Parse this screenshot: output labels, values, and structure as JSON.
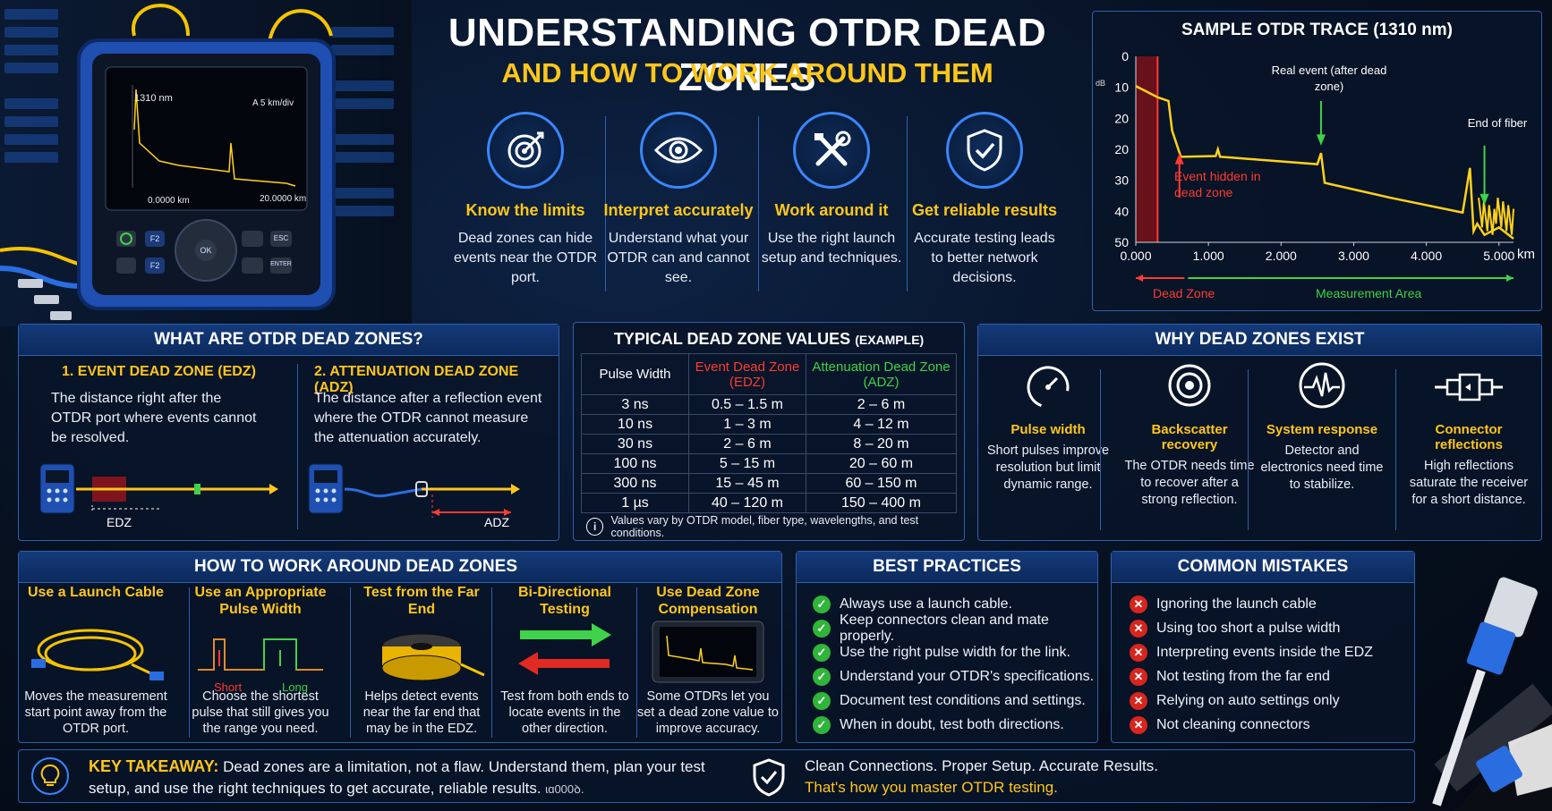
{
  "header": {
    "title": "UNDERSTANDING OTDR DEAD ZONES",
    "subtitle": "AND HOW TO WORK AROUND THEM"
  },
  "device": {
    "wavelength": "1310 nm",
    "scale": "A 5 km/div",
    "start": "0.0000 km",
    "end": "20.0000 km",
    "keys": [
      "F2",
      "F2",
      "OK",
      "ESC",
      "ENTER"
    ]
  },
  "pillars": [
    {
      "icon": "target-icon",
      "title": "Know the limits",
      "text": "Dead zones can hide events near the OTDR port."
    },
    {
      "icon": "eye-icon",
      "title": "Interpret accurately",
      "text": "Understand what your OTDR can and cannot see."
    },
    {
      "icon": "tools-icon",
      "title": "Work around it",
      "text": "Use the right launch setup and techniques."
    },
    {
      "icon": "shield-check-icon",
      "title": "Get reliable results",
      "text": "Accurate testing leads to better network decisions."
    }
  ],
  "trace": {
    "title": "SAMPLE OTDR TRACE (1310 nm)",
    "y_unit": "dB",
    "y_ticks": [
      "0",
      "10",
      "20",
      "20",
      "30",
      "40",
      "50"
    ],
    "x_ticks": [
      "0.000",
      "1.000",
      "2.000",
      "3.000",
      "4.000",
      "5.000"
    ],
    "x_unit": "km",
    "annotations": {
      "hidden": "Event hidden in dead zone",
      "real": "Real event (after dead zone)",
      "end": "End of fiber"
    },
    "dead_zone_label": "Dead Zone",
    "measure_label": "Measurement Area"
  },
  "chart_data": {
    "type": "line",
    "title": "SAMPLE OTDR TRACE (1310 nm)",
    "xlabel": "km",
    "ylabel": "dB",
    "xlim": [
      0,
      5.2
    ],
    "ylim": [
      0,
      50
    ],
    "x": [
      0.0,
      0.3,
      0.45,
      0.5,
      0.62,
      1.1,
      1.13,
      1.16,
      1.3,
      2.5,
      2.55,
      2.6,
      3.5,
      4.5,
      4.6,
      4.65,
      4.7,
      4.8,
      5.0,
      5.2
    ],
    "series": [
      {
        "values": [
          8,
          11,
          12,
          20,
          27,
          26.8,
          25,
          27,
          27.2,
          29,
          26,
          34,
          38,
          42,
          30,
          47,
          45,
          48,
          46,
          49
        ]
      }
    ]
  },
  "what": {
    "title": "WHAT ARE OTDR DEAD ZONES?",
    "edz_title": "1. EVENT DEAD ZONE (EDZ)",
    "edz_text": "The distance right after the OTDR port where events cannot be resolved.",
    "edz_label": "EDZ",
    "adz_title": "2. ATTENUATION DEAD ZONE (ADZ)",
    "adz_text": "The distance after a reflection event where the OTDR cannot measure the attenuation accurately.",
    "adz_label": "ADZ"
  },
  "values_table": {
    "title": "TYPICAL DEAD ZONE VALUES",
    "title_suffix": "(EXAMPLE)",
    "headers": [
      "Pulse Width",
      "Event Dead Zone (EDZ)",
      "Attenuation Dead Zone (ADZ)"
    ],
    "rows": [
      [
        "3 ns",
        "0.5 – 1.5 m",
        "2 – 6 m"
      ],
      [
        "10 ns",
        "1 – 3 m",
        "4 – 12 m"
      ],
      [
        "30 ns",
        "2 – 6 m",
        "8 – 20 m"
      ],
      [
        "100 ns",
        "5 – 15 m",
        "20 – 60 m"
      ],
      [
        "300 ns",
        "15 – 45 m",
        "60 – 150 m"
      ],
      [
        "1 µs",
        "40 – 120 m",
        "150 – 400 m"
      ]
    ],
    "note": "Values vary by OTDR model, fiber type, wavelengths, and test conditions."
  },
  "why": {
    "title": "WHY DEAD ZONES EXIST",
    "items": [
      {
        "icon": "gauge-icon",
        "title": "Pulse width",
        "text": "Short pulses improve resolution but limit dynamic range."
      },
      {
        "icon": "recovery-icon",
        "title": "Backscatter recovery",
        "text": "The OTDR needs time to recover after a strong reflection."
      },
      {
        "icon": "pulse-icon",
        "title": "System response",
        "text": "Detector and electronics need time to stabilize."
      },
      {
        "icon": "connector-icon",
        "title": "Connector reflections",
        "text": "High reflections saturate the receiver for a short distance."
      }
    ]
  },
  "work": {
    "title": "HOW TO WORK AROUND DEAD ZONES",
    "items": [
      {
        "title": "Use a Launch Cable",
        "text": "Moves the measurement start point away from the OTDR port."
      },
      {
        "title": "Use an Appropriate Pulse Width",
        "text": "Choose the shortest pulse that still gives you the range you need.",
        "short": "Short",
        "long": "Long"
      },
      {
        "title": "Test from the Far End",
        "text": "Helps detect events near the far end that may be in the EDZ."
      },
      {
        "title": "Bi-Directional Testing",
        "text": "Test from both ends to locate events in the other direction."
      },
      {
        "title": "Use Dead Zone Compensation",
        "text": "Some OTDRs let you set a dead zone value to improve accuracy."
      }
    ]
  },
  "best": {
    "title": "BEST PRACTICES",
    "items": [
      "Always use a launch cable.",
      "Keep connectors clean and mate properly.",
      "Use the right pulse width for the link.",
      "Understand your OTDR's specifications.",
      "Document test conditions and settings.",
      "When in doubt, test both directions."
    ]
  },
  "mistakes": {
    "title": "COMMON MISTAKES",
    "items": [
      "Ignoring the launch cable",
      "Using too short a pulse width",
      "Interpreting events inside the EDZ",
      "Not testing from the far end",
      "Relying on auto settings only",
      "Not cleaning connectors"
    ]
  },
  "takeaway": {
    "label": "KEY TAKEAWAY:",
    "text": "Dead zones are a limitation, not a flaw. Understand them, plan your test setup, and use the right techniques to get accurate, reliable results.",
    "stamp": "ɩɑ000ꝺ.",
    "line1": "Clean Connections. Proper Setup. Accurate Results.",
    "line2": "That's how you master OTDR testing."
  },
  "colors": {
    "accent_yellow": "#ffc61a",
    "accent_green": "#3fd24a",
    "accent_red": "#ff3b30",
    "panel_border": "#2f5fae",
    "trace_yellow": "#ffd21a"
  }
}
